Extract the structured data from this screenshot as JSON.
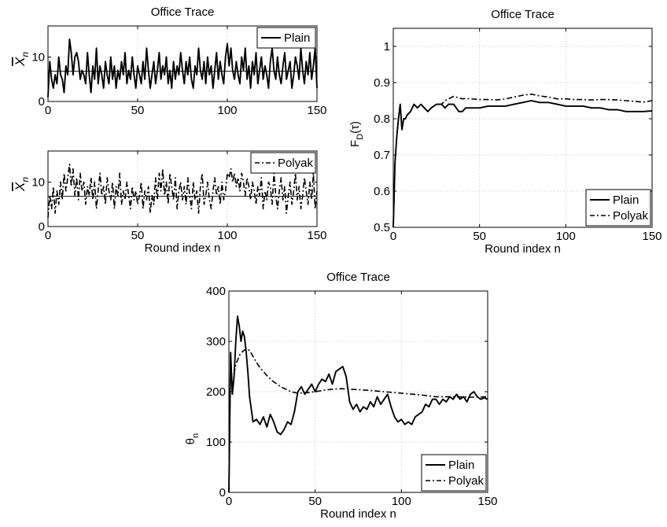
{
  "chart_data": [
    {
      "id": "xbar-plain",
      "type": "line",
      "title": "Office Trace",
      "xlabel": "",
      "ylabel": "X̄_n",
      "xlim": [
        0,
        150
      ],
      "ylim": [
        0,
        17
      ],
      "xticks": [
        0,
        50,
        100,
        150
      ],
      "yticks": [
        0,
        10
      ],
      "grid": true,
      "legend": "top-right",
      "reference_line": 6.8,
      "series": [
        {
          "name": "Plain",
          "style": "solid",
          "x": [
            0,
            1,
            2,
            3,
            4,
            5,
            6,
            7,
            8,
            9,
            10,
            11,
            12,
            13,
            14,
            15,
            16,
            17,
            18,
            19,
            20,
            21,
            22,
            23,
            24,
            25,
            26,
            27,
            28,
            29,
            30,
            31,
            32,
            33,
            34,
            35,
            36,
            37,
            38,
            39,
            40,
            41,
            42,
            43,
            44,
            45,
            46,
            47,
            48,
            49,
            50,
            51,
            52,
            53,
            54,
            55,
            56,
            57,
            58,
            59,
            60,
            61,
            62,
            63,
            64,
            65,
            66,
            67,
            68,
            69,
            70,
            71,
            72,
            73,
            74,
            75,
            76,
            77,
            78,
            79,
            80,
            81,
            82,
            83,
            84,
            85,
            86,
            87,
            88,
            89,
            90,
            91,
            92,
            93,
            94,
            95,
            96,
            97,
            98,
            99,
            100,
            101,
            102,
            103,
            104,
            105,
            106,
            107,
            108,
            109,
            110,
            111,
            112,
            113,
            114,
            115,
            116,
            117,
            118,
            119,
            120,
            121,
            122,
            123,
            124,
            125,
            126,
            127,
            128,
            129,
            130,
            131,
            132,
            133,
            134,
            135,
            136,
            137,
            138,
            139,
            140,
            141,
            142,
            143,
            144,
            145,
            146,
            147,
            148,
            149,
            150
          ],
          "values": [
            1,
            9,
            5,
            3,
            6,
            4,
            10,
            6,
            5,
            2,
            8,
            6,
            14,
            11,
            6,
            10,
            11,
            9,
            5,
            7,
            6,
            4,
            11,
            6,
            2,
            8,
            5,
            12,
            4,
            8,
            6,
            3,
            9,
            6,
            4,
            10,
            5,
            8,
            3,
            7,
            5,
            9,
            6,
            11,
            4,
            7,
            5,
            10,
            6,
            3,
            8,
            6,
            4,
            9,
            5,
            12,
            7,
            3,
            6,
            9,
            4,
            7,
            11,
            5,
            8,
            6,
            10,
            4,
            7,
            3,
            9,
            5,
            8,
            6,
            11,
            7,
            4,
            9,
            6,
            10,
            5,
            3,
            8,
            6,
            12,
            7,
            5,
            9,
            4,
            10,
            6,
            8,
            3,
            7,
            11,
            5,
            9,
            6,
            4,
            10,
            13,
            8,
            12,
            7,
            5,
            9,
            6,
            4,
            10,
            7,
            12,
            5,
            8,
            3,
            9,
            6,
            11,
            4,
            7,
            10,
            5,
            8,
            6,
            3,
            9,
            12,
            7,
            5,
            10,
            6,
            4,
            8,
            11,
            5,
            7,
            9,
            3,
            6,
            10,
            8,
            5,
            12,
            7,
            4,
            9,
            6,
            11,
            5,
            8,
            12,
            3
          ]
        }
      ]
    },
    {
      "id": "xbar-polyak",
      "type": "line",
      "title": "",
      "xlabel": "Round index n",
      "ylabel": "X̄_n",
      "xlim": [
        0,
        150
      ],
      "ylim": [
        0,
        17
      ],
      "xticks": [
        0,
        50,
        100,
        150
      ],
      "yticks": [
        0,
        10
      ],
      "grid": true,
      "legend": "top-right",
      "reference_line": 6.8,
      "series": [
        {
          "name": "Polyak",
          "style": "dashdot",
          "x": [
            0,
            1,
            2,
            3,
            4,
            5,
            6,
            7,
            8,
            9,
            10,
            11,
            12,
            13,
            14,
            15,
            16,
            17,
            18,
            19,
            20,
            21,
            22,
            23,
            24,
            25,
            26,
            27,
            28,
            29,
            30,
            31,
            32,
            33,
            34,
            35,
            36,
            37,
            38,
            39,
            40,
            41,
            42,
            43,
            44,
            45,
            46,
            47,
            48,
            49,
            50,
            51,
            52,
            53,
            54,
            55,
            56,
            57,
            58,
            59,
            60,
            61,
            62,
            63,
            64,
            65,
            66,
            67,
            68,
            69,
            70,
            71,
            72,
            73,
            74,
            75,
            76,
            77,
            78,
            79,
            80,
            81,
            82,
            83,
            84,
            85,
            86,
            87,
            88,
            89,
            90,
            91,
            92,
            93,
            94,
            95,
            96,
            97,
            98,
            99,
            100,
            101,
            102,
            103,
            104,
            105,
            106,
            107,
            108,
            109,
            110,
            111,
            112,
            113,
            114,
            115,
            116,
            117,
            118,
            119,
            120,
            121,
            122,
            123,
            124,
            125,
            126,
            127,
            128,
            129,
            130,
            131,
            132,
            133,
            134,
            135,
            136,
            137,
            138,
            139,
            140,
            141,
            142,
            143,
            144,
            145,
            146,
            147,
            148,
            149,
            150
          ],
          "values": [
            2,
            7,
            4,
            9,
            3,
            8,
            5,
            10,
            6,
            12,
            8,
            11,
            14,
            9,
            13,
            7,
            11,
            6,
            12,
            8,
            10,
            5,
            9,
            7,
            11,
            6,
            10,
            4,
            8,
            12,
            7,
            9,
            5,
            11,
            8,
            6,
            10,
            4,
            9,
            7,
            12,
            5,
            8,
            6,
            10,
            7,
            4,
            9,
            6,
            8,
            5,
            7,
            10,
            4,
            8,
            6,
            9,
            3,
            7,
            5,
            11,
            6,
            12,
            8,
            13,
            7,
            10,
            5,
            12,
            9,
            6,
            11,
            4,
            8,
            10,
            6,
            9,
            5,
            11,
            7,
            4,
            10,
            6,
            8,
            3,
            9,
            12,
            5,
            7,
            10,
            6,
            4,
            8,
            11,
            7,
            9,
            5,
            10,
            6,
            8,
            12,
            11,
            13,
            10,
            12,
            9,
            11,
            8,
            12,
            10,
            7,
            11,
            9,
            6,
            10,
            8,
            5,
            9,
            7,
            11,
            4,
            8,
            6,
            10,
            9,
            5,
            12,
            7,
            4,
            8,
            11,
            6,
            9,
            3,
            7,
            10,
            5,
            8,
            12,
            6,
            9,
            4,
            7,
            11,
            8,
            5,
            10,
            6,
            12,
            4,
            8
          ]
        }
      ]
    },
    {
      "id": "fd",
      "type": "line",
      "title": "Office Trace",
      "xlabel": "Round index n",
      "ylabel": "F_D(τ)",
      "xlim": [
        0,
        150
      ],
      "ylim": [
        0.5,
        1.05
      ],
      "xticks": [
        0,
        50,
        100,
        150
      ],
      "yticks": [
        0.5,
        0.6,
        0.7,
        0.8,
        0.9,
        1
      ],
      "grid": true,
      "legend": "bottom-right",
      "series": [
        {
          "name": "Plain",
          "style": "solid",
          "x": [
            0,
            1,
            2,
            3,
            4,
            5,
            6,
            7,
            8,
            10,
            12,
            14,
            16,
            18,
            20,
            22,
            25,
            28,
            30,
            32,
            35,
            38,
            40,
            42,
            45,
            48,
            50,
            55,
            60,
            65,
            70,
            75,
            80,
            85,
            90,
            95,
            100,
            105,
            110,
            115,
            120,
            125,
            130,
            135,
            140,
            145,
            150
          ],
          "values": [
            0.5,
            0.68,
            0.75,
            0.8,
            0.84,
            0.77,
            0.8,
            0.8,
            0.81,
            0.82,
            0.84,
            0.83,
            0.84,
            0.83,
            0.82,
            0.83,
            0.84,
            0.84,
            0.83,
            0.84,
            0.84,
            0.82,
            0.82,
            0.83,
            0.83,
            0.83,
            0.83,
            0.835,
            0.835,
            0.835,
            0.84,
            0.845,
            0.85,
            0.845,
            0.845,
            0.84,
            0.835,
            0.835,
            0.835,
            0.83,
            0.83,
            0.825,
            0.825,
            0.82,
            0.82,
            0.82,
            0.822
          ]
        },
        {
          "name": "Polyak",
          "style": "dashdot",
          "x": [
            0,
            1,
            2,
            3,
            4,
            5,
            6,
            7,
            8,
            10,
            12,
            14,
            16,
            18,
            20,
            22,
            25,
            28,
            30,
            32,
            35,
            38,
            40,
            42,
            45,
            48,
            50,
            55,
            60,
            65,
            70,
            75,
            80,
            85,
            90,
            95,
            100,
            105,
            110,
            115,
            120,
            125,
            130,
            135,
            140,
            145,
            150
          ],
          "values": [
            0.5,
            0.68,
            0.75,
            0.8,
            0.84,
            0.77,
            0.8,
            0.8,
            0.81,
            0.82,
            0.84,
            0.83,
            0.84,
            0.83,
            0.82,
            0.83,
            0.84,
            0.84,
            0.85,
            0.855,
            0.862,
            0.858,
            0.855,
            0.856,
            0.855,
            0.854,
            0.853,
            0.853,
            0.852,
            0.855,
            0.86,
            0.865,
            0.868,
            0.863,
            0.86,
            0.855,
            0.855,
            0.853,
            0.853,
            0.852,
            0.853,
            0.853,
            0.852,
            0.85,
            0.848,
            0.846,
            0.85
          ]
        }
      ]
    },
    {
      "id": "theta",
      "type": "line",
      "title": "Office Trace",
      "xlabel": "Round index n",
      "ylabel": "θ_n",
      "xlim": [
        0,
        150
      ],
      "ylim": [
        0,
        400
      ],
      "xticks": [
        0,
        50,
        100,
        150
      ],
      "yticks": [
        0,
        100,
        200,
        300,
        400
      ],
      "grid": true,
      "legend": "bottom-right",
      "series": [
        {
          "name": "Plain",
          "style": "solid",
          "x": [
            0,
            1,
            2,
            3,
            4,
            5,
            6,
            7,
            8,
            9,
            10,
            11,
            12,
            14,
            16,
            18,
            20,
            22,
            24,
            26,
            28,
            30,
            32,
            34,
            36,
            38,
            40,
            42,
            44,
            46,
            48,
            50,
            52,
            54,
            56,
            58,
            60,
            62,
            64,
            66,
            68,
            70,
            72,
            74,
            76,
            78,
            80,
            82,
            84,
            86,
            88,
            90,
            92,
            94,
            96,
            98,
            100,
            102,
            104,
            106,
            108,
            110,
            112,
            114,
            116,
            118,
            120,
            122,
            124,
            126,
            128,
            130,
            132,
            134,
            136,
            138,
            140,
            142,
            144,
            146,
            148,
            150
          ],
          "values": [
            0,
            278,
            195,
            230,
            300,
            350,
            330,
            300,
            320,
            310,
            280,
            240,
            190,
            140,
            145,
            135,
            150,
            130,
            155,
            140,
            120,
            115,
            125,
            140,
            135,
            160,
            200,
            210,
            195,
            205,
            215,
            200,
            215,
            225,
            220,
            235,
            215,
            240,
            245,
            250,
            230,
            180,
            165,
            175,
            160,
            170,
            165,
            180,
            170,
            190,
            175,
            185,
            195,
            170,
            150,
            140,
            145,
            135,
            140,
            135,
            150,
            155,
            160,
            175,
            170,
            185,
            185,
            175,
            185,
            180,
            190,
            185,
            195,
            185,
            190,
            180,
            195,
            200,
            190,
            185,
            188,
            185
          ]
        },
        {
          "name": "Polyak",
          "style": "dashdot",
          "x": [
            0,
            1,
            2,
            3,
            4,
            5,
            6,
            8,
            10,
            12,
            14,
            16,
            18,
            20,
            22,
            25,
            28,
            30,
            33,
            36,
            40,
            45,
            50,
            55,
            60,
            65,
            70,
            75,
            80,
            90,
            100,
            110,
            120,
            130,
            140,
            150
          ],
          "values": [
            0,
            270,
            200,
            235,
            255,
            262,
            272,
            280,
            285,
            282,
            270,
            258,
            248,
            240,
            232,
            222,
            215,
            210,
            205,
            200,
            197,
            198,
            200,
            203,
            205,
            206,
            205,
            204,
            203,
            200,
            197,
            194,
            190,
            190,
            189,
            190
          ]
        }
      ]
    }
  ]
}
